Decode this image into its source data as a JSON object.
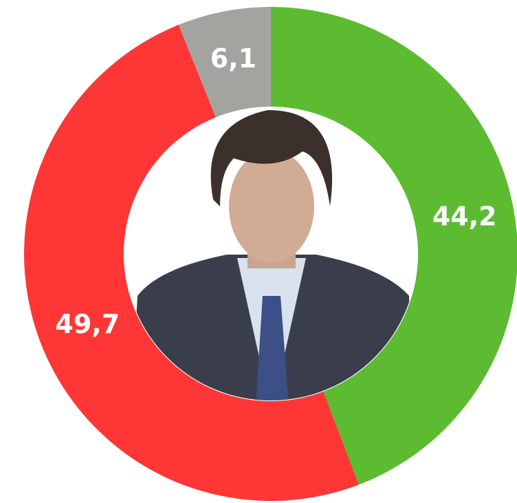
{
  "chart_data": {
    "type": "donut",
    "values": [
      44.2,
      49.7,
      6.1
    ],
    "value_labels": [
      "44,2",
      "49,7",
      "6,1"
    ],
    "colors": [
      "#5dbb32",
      "#fe3636",
      "#a3a39f"
    ]
  }
}
